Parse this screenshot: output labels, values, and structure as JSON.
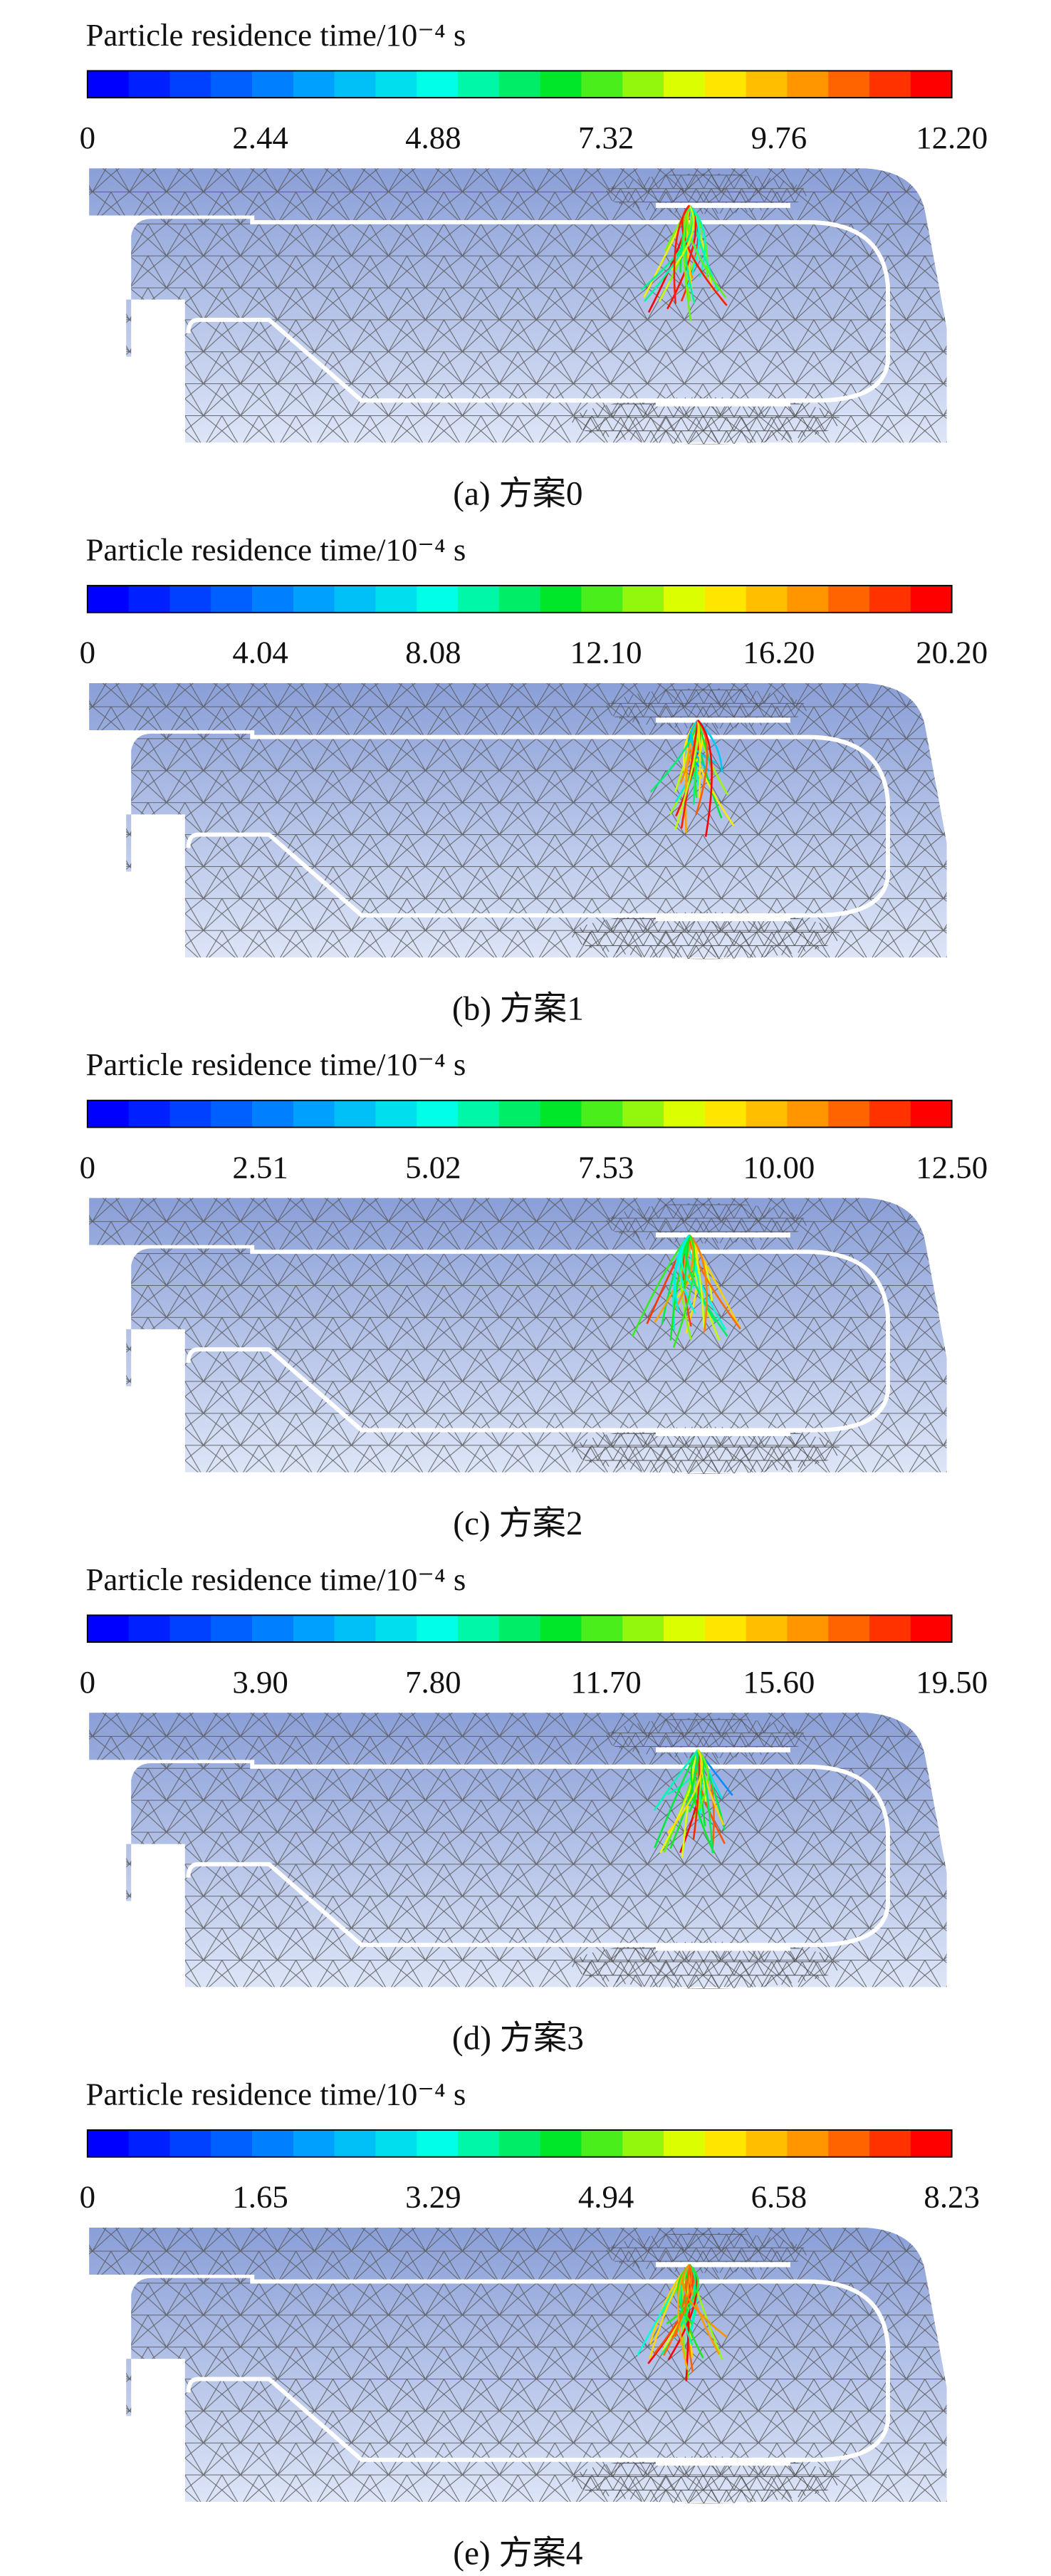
{
  "panels": [
    {
      "title": "Particle residence time/10⁻⁴ s",
      "ticks": [
        "0",
        "2.44",
        "4.88",
        "7.32",
        "9.76",
        "12.20"
      ],
      "caption": "(a) 方案0"
    },
    {
      "title": "Particle residence time/10⁻⁴ s",
      "ticks": [
        "0",
        "4.04",
        "8.08",
        "12.10",
        "16.20",
        "20.20"
      ],
      "caption": "(b) 方案1"
    },
    {
      "title": "Particle residence time/10⁻⁴ s",
      "ticks": [
        "0",
        "2.51",
        "5.02",
        "7.53",
        "10.00",
        "12.50"
      ],
      "caption": "(c) 方案2"
    },
    {
      "title": "Particle residence time/10⁻⁴ s",
      "ticks": [
        "0",
        "3.90",
        "7.80",
        "11.70",
        "15.60",
        "19.50"
      ],
      "caption": "(d) 方案3"
    },
    {
      "title": "Particle residence time/10⁻⁴ s",
      "ticks": [
        "0",
        "1.65",
        "3.29",
        "4.94",
        "6.58",
        "8.23"
      ],
      "caption": "(e) 方案4"
    }
  ]
}
